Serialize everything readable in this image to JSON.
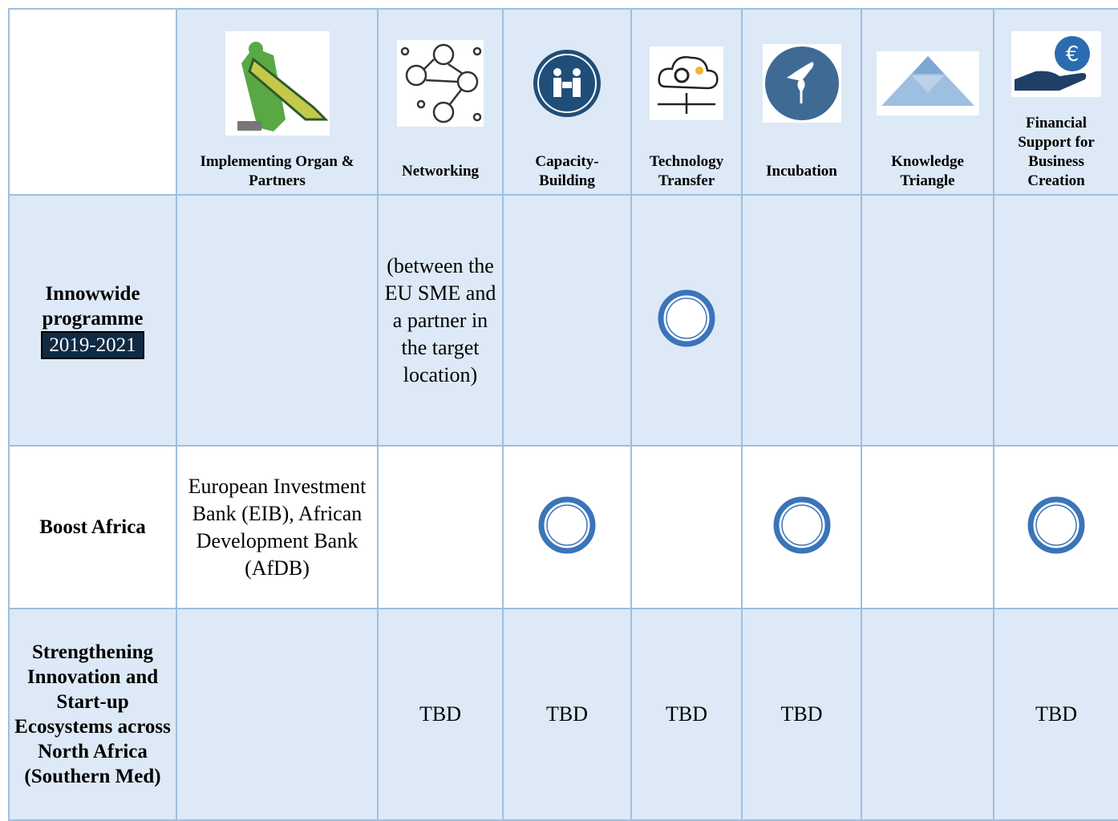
{
  "table": {
    "columns": [
      "Implementing Organ & Partners",
      "Networking",
      "Capacity-Building",
      "Technology Transfer",
      "Incubation",
      "Knowledge Triangle",
      "Financial Support for Business Creation"
    ],
    "rows": [
      {
        "title": "Innowwide programme",
        "period": "2019-2021",
        "networking": "(between the EU SME and a partner in the target location)"
      },
      {
        "title": "Boost Africa",
        "partners": "European Investment Bank (EIB), African Development Bank (AfDB)"
      },
      {
        "title": "Strengthening Innovation and Start-up Ecosystems across North Africa (Southern Med)",
        "tbd": [
          "TBD",
          "TBD",
          "TBD",
          "TBD",
          "TBD"
        ]
      }
    ]
  }
}
